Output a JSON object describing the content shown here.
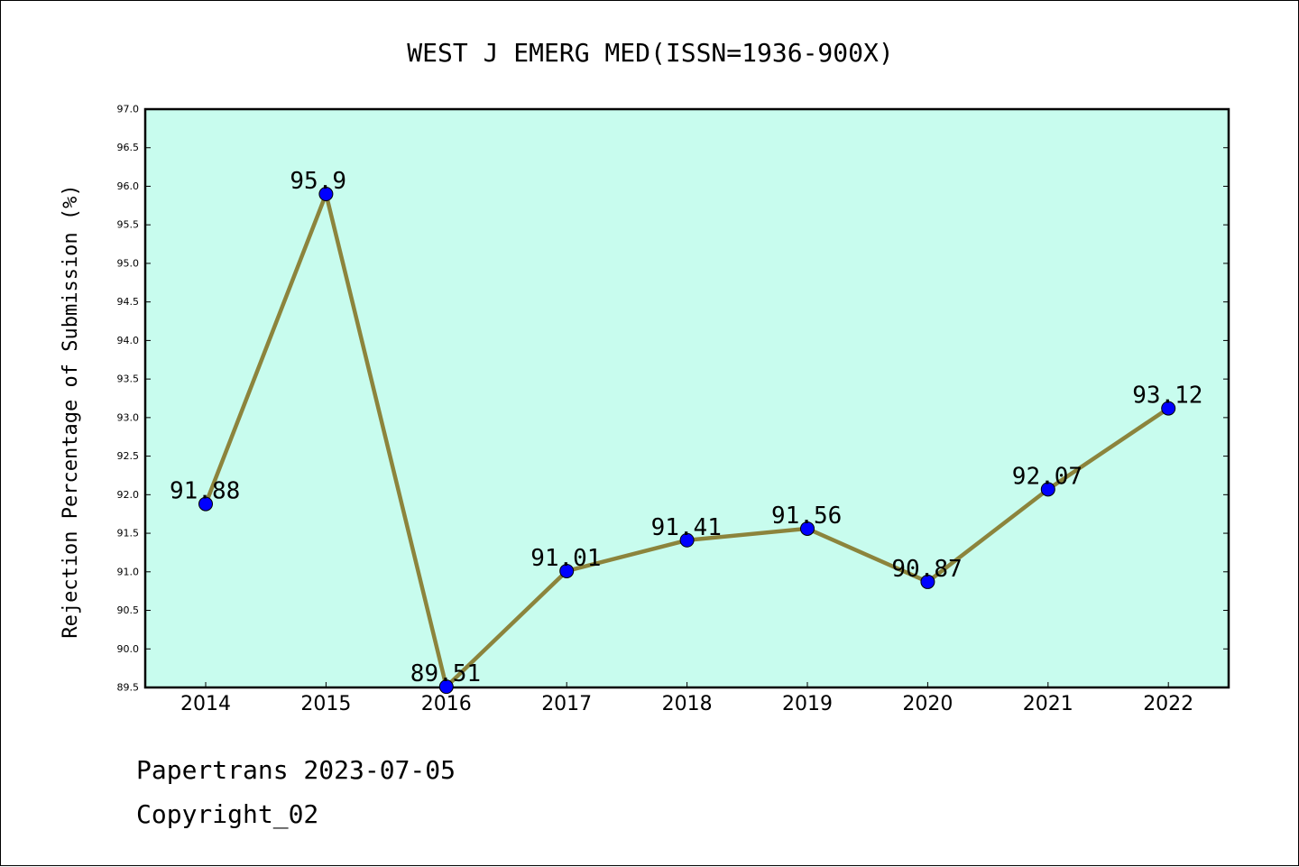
{
  "chart_data": {
    "type": "line",
    "title": "WEST J EMERG MED(ISSN=1936-900X)",
    "xlabel": "",
    "ylabel": "Rejection Percentage of Submission (%)",
    "categories": [
      "2014",
      "2015",
      "2016",
      "2017",
      "2018",
      "2019",
      "2020",
      "2021",
      "2022"
    ],
    "series": [
      {
        "values": [
          91.88,
          95.9,
          89.51,
          91.01,
          91.41,
          91.56,
          90.87,
          92.07,
          93.12
        ],
        "data_labels": [
          "91.88",
          "95.9",
          "89.51",
          "91.01",
          "91.41",
          "91.56",
          "90.87",
          "92.07",
          "93.12"
        ]
      }
    ],
    "ylim": [
      89.5,
      97.0
    ],
    "yticks": [
      "89.5",
      "90.0",
      "90.5",
      "91.0",
      "91.5",
      "92.0",
      "92.5",
      "93.0",
      "93.5",
      "94.0",
      "94.5",
      "95.0",
      "95.5",
      "96.0",
      "96.5",
      "97.0"
    ],
    "grid": false,
    "legend": "none",
    "colors": {
      "plot_background": "#c8fcee",
      "line": "#8c843c",
      "marker": "#0000ff"
    }
  },
  "footer": {
    "date_line": "Papertrans 2023-07-05",
    "copyright_line": "Copyright_02"
  }
}
